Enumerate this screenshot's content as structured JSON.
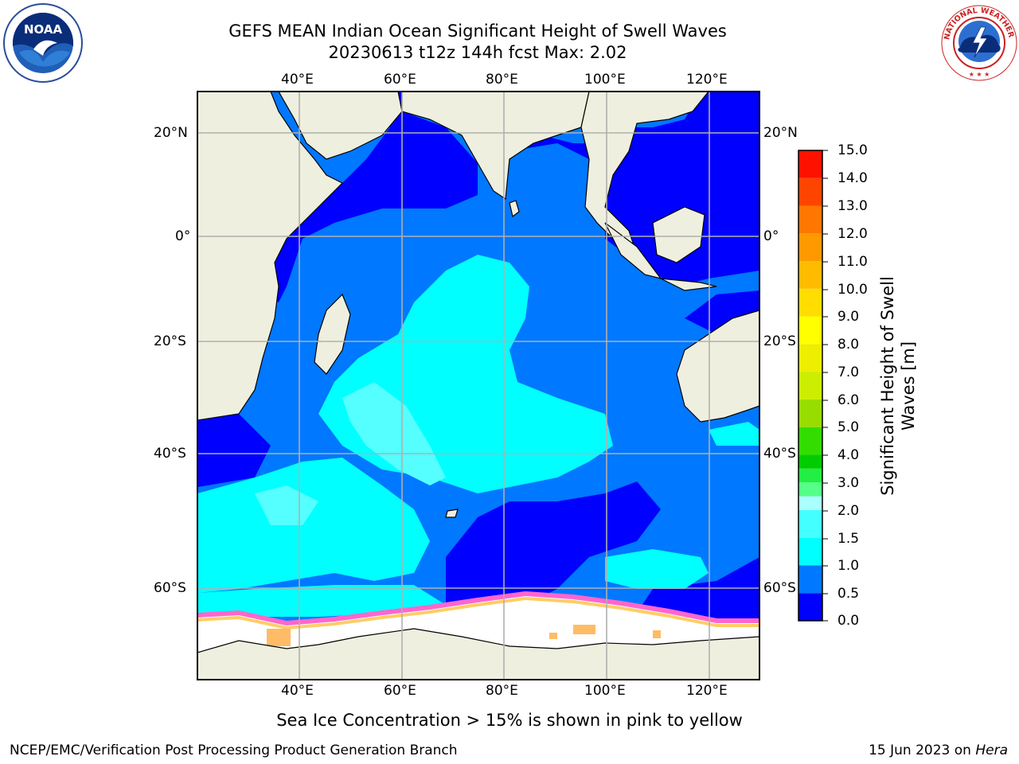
{
  "title": {
    "line1": "GEFS MEAN Indian Ocean Significant Height of Swell Waves",
    "line2": "20230613 t12z 144h fcst   Max: 2.02"
  },
  "logos": {
    "left": "noaa-logo",
    "right": "national-weather-service-logo",
    "left_text": "NOAA",
    "right_text": "NATIONAL WEATHER SERVICE"
  },
  "map": {
    "region": "Indian Ocean",
    "extent": {
      "lon_min": 20,
      "lon_max": 130,
      "lat_min": -76,
      "lat_max": 28
    },
    "longitude_ticks": [
      "40°E",
      "60°E",
      "80°E",
      "100°E",
      "120°E"
    ],
    "latitude_ticks": [
      "20°N",
      "0°",
      "20°S",
      "40°S",
      "60°S"
    ],
    "grid": true,
    "colors": {
      "land": "#efefdf",
      "swell_0_0.5": "#0000ff",
      "swell_0.5_1.0": "#0078ff",
      "swell_1.0_1.5": "#00ffff",
      "swell_1.5_2.0": "#55ffff",
      "sea_ice": "#ffffff",
      "sea_ice_edge_pink": "#ff66cc",
      "sea_ice_edge_yellow": "#ffcc66"
    }
  },
  "colorbar": {
    "label_line1": "Significant Height of Swell",
    "label_line2": "Waves [m]",
    "ticks": [
      "15.0",
      "14.0",
      "13.0",
      "12.0",
      "11.0",
      "10.0",
      "9.0",
      "8.0",
      "7.0",
      "6.0",
      "5.0",
      "4.0",
      "3.0",
      "2.0",
      "1.5",
      "1.0",
      "0.5",
      "0.0"
    ],
    "levels": [
      0,
      0.5,
      1.0,
      1.5,
      2.0,
      2.5,
      3.0,
      3.5,
      4.0,
      5.0,
      6.0,
      7.0,
      8.0,
      9.0,
      10.0,
      11.0,
      12.0,
      13.0,
      14.0,
      15.0
    ],
    "colors": [
      "#0000ff",
      "#0078ff",
      "#00ffff",
      "#44ffff",
      "#aaffff",
      "#55ff88",
      "#22ee44",
      "#00cc00",
      "#33dd00",
      "#99dd00",
      "#ccee00",
      "#eeee00",
      "#ffff00",
      "#ffdd00",
      "#ffbb00",
      "#ff9900",
      "#ff7700",
      "#ff4400",
      "#ff1100"
    ]
  },
  "note": "Sea Ice Concentration > 15% is shown in pink to yellow",
  "footer": {
    "left": "NCEP/EMC/Verification Post Processing Product Generation Branch",
    "right_date": "15 Jun 2023 on ",
    "right_host": "Hera"
  }
}
